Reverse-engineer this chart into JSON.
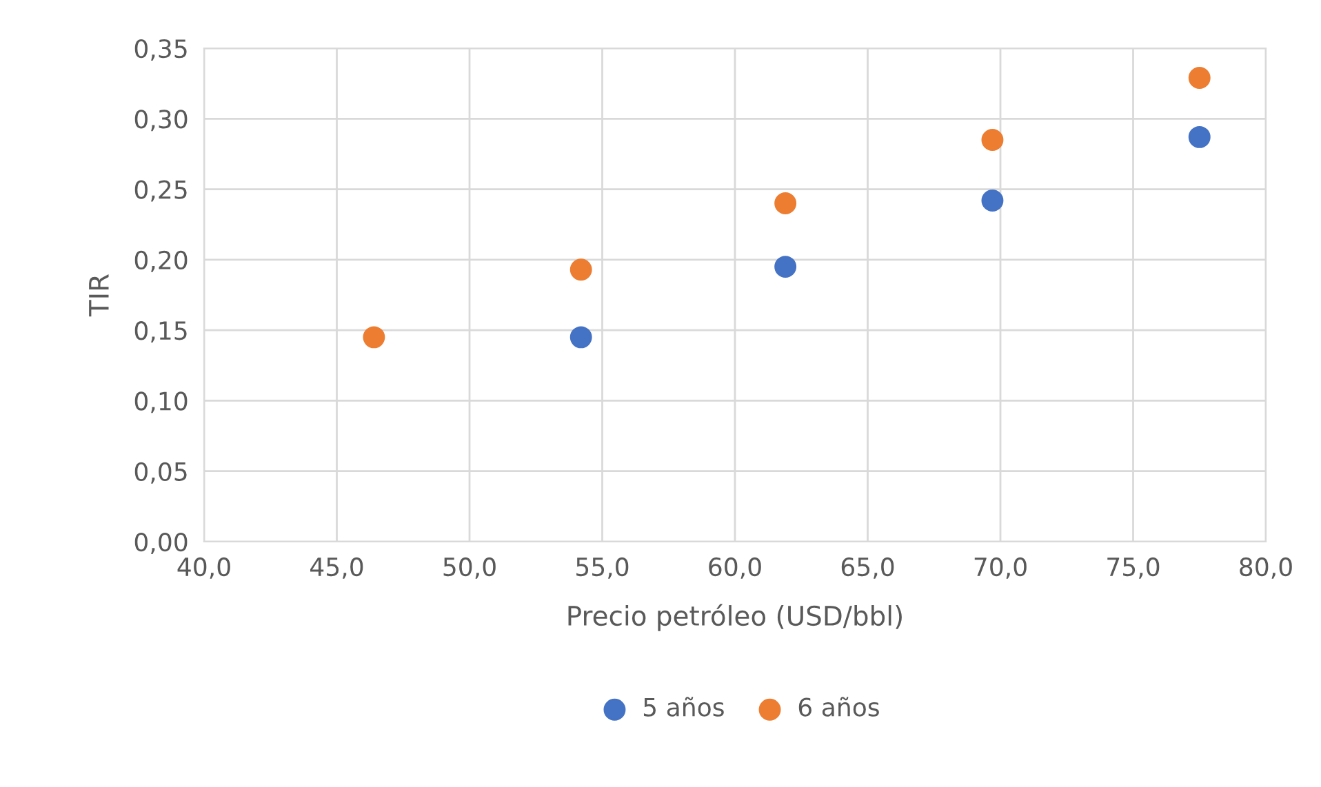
{
  "chart_data": {
    "type": "scatter",
    "xlabel": "Precio petróleo (USD/bbl)",
    "ylabel": "TIR",
    "series": [
      {
        "name": "5 años",
        "color": "#4472c4",
        "x": [
          54.2,
          61.9,
          69.7,
          77.5
        ],
        "values": [
          0.145,
          0.195,
          0.242,
          0.287
        ]
      },
      {
        "name": "6 años",
        "color": "#ed7d31",
        "x": [
          46.4,
          54.2,
          61.9,
          69.7,
          77.5
        ],
        "values": [
          0.145,
          0.193,
          0.24,
          0.285,
          0.329
        ]
      }
    ],
    "xlim": [
      40,
      80
    ],
    "xticks": [
      {
        "value": 40,
        "label": "40,0"
      },
      {
        "value": 45,
        "label": "45,0"
      },
      {
        "value": 50,
        "label": "50,0"
      },
      {
        "value": 55,
        "label": "55,0"
      },
      {
        "value": 60,
        "label": "60,0"
      },
      {
        "value": 65,
        "label": "65,0"
      },
      {
        "value": 70,
        "label": "70,0"
      },
      {
        "value": 75,
        "label": "75,0"
      },
      {
        "value": 80,
        "label": "80,0"
      }
    ],
    "ylim": [
      0,
      0.35
    ],
    "yticks": [
      {
        "value": 0,
        "label": "0,00"
      },
      {
        "value": 0.05,
        "label": "0,05"
      },
      {
        "value": 0.1,
        "label": "0,10"
      },
      {
        "value": 0.15,
        "label": "0,15"
      },
      {
        "value": 0.2,
        "label": "0,20"
      },
      {
        "value": 0.25,
        "label": "0,25"
      },
      {
        "value": 0.3,
        "label": "0,30"
      },
      {
        "value": 0.35,
        "label": "0,35"
      }
    ],
    "grid": true,
    "legend": "bottom",
    "marker": "circle"
  }
}
